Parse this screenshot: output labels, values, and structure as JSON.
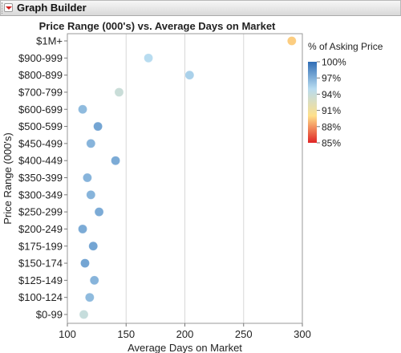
{
  "window": {
    "title": "Graph Builder"
  },
  "chart_data": {
    "type": "scatter",
    "title": "Price Range (000's) vs. Average Days on Market",
    "xlabel": "Average Days on Market",
    "ylabel": "Price Range (000's)",
    "xlim": [
      100,
      300
    ],
    "xticks": [
      100,
      150,
      200,
      250,
      300
    ],
    "grid": "vertical",
    "categories": [
      "$1M+",
      "$900-999",
      "$800-899",
      "$700-799",
      "$600-699",
      "$500-599",
      "$450-499",
      "$400-449",
      "$350-399",
      "$300-349",
      "$250-299",
      "$200-249",
      "$175-199",
      "$150-174",
      "$125-149",
      "$100-124",
      "$0-99"
    ],
    "x": [
      291,
      169,
      204,
      144,
      113,
      126,
      120,
      141,
      117,
      120,
      127,
      113,
      122,
      115,
      123,
      119,
      114
    ],
    "color_values": [
      89.5,
      95,
      95.5,
      93.8,
      96.5,
      97.5,
      96.8,
      97.2,
      96.8,
      96.8,
      97.2,
      97.2,
      97.5,
      97.5,
      96.8,
      96.5,
      94
    ],
    "legend": {
      "title": "% of Asking Price",
      "placement": "right",
      "ticks": [
        "100%",
        "97%",
        "94%",
        "91%",
        "88%",
        "85%"
      ],
      "min": 85,
      "max": 100,
      "colors": [
        "#2f6db5",
        "#b8dcf0",
        "#ffe08a",
        "#e02424"
      ]
    }
  }
}
